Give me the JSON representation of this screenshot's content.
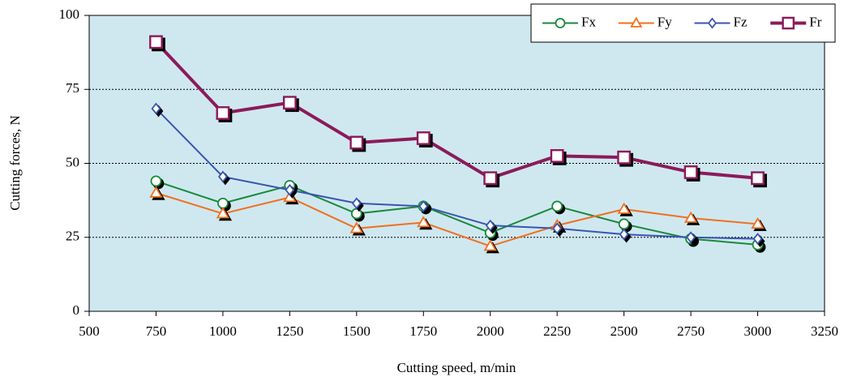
{
  "chart_data": {
    "type": "line",
    "x_label": "Cutting speed, m/min",
    "y_label": "Cutting forces, N",
    "x": [
      750,
      1000,
      1250,
      1500,
      1750,
      2000,
      2250,
      2500,
      2750,
      3000
    ],
    "series": [
      {
        "name": "Fx",
        "color": "#1a8a3a",
        "marker": "circle",
        "width": 2,
        "values": [
          44,
          36.5,
          42.5,
          33,
          35.5,
          26.5,
          35.5,
          29.5,
          24.5,
          22.5
        ]
      },
      {
        "name": "Fy",
        "color": "#f07020",
        "marker": "triangle",
        "width": 2,
        "values": [
          40,
          33,
          38.5,
          28,
          30,
          22,
          29,
          34.5,
          31.5,
          29.5
        ]
      },
      {
        "name": "Fz",
        "color": "#3a55b0",
        "marker": "diamond",
        "width": 2,
        "values": [
          68.5,
          45.5,
          41,
          36.5,
          35.5,
          29,
          28,
          26,
          25,
          24.5
        ]
      },
      {
        "name": "Fr",
        "color": "#8b1a5a",
        "marker": "square",
        "width": 4,
        "values": [
          91,
          67,
          70.5,
          57,
          58.5,
          45,
          52.5,
          52,
          47,
          45
        ]
      }
    ],
    "xlim": [
      500,
      3250
    ],
    "xticks": [
      500,
      750,
      1000,
      1250,
      1500,
      1750,
      2000,
      2250,
      2500,
      2750,
      3000,
      3250
    ],
    "ylim": [
      0,
      100
    ],
    "yticks": [
      0,
      25,
      50,
      75,
      100
    ],
    "grid": true,
    "legend": "top-right",
    "background": "#cfe8f0"
  }
}
